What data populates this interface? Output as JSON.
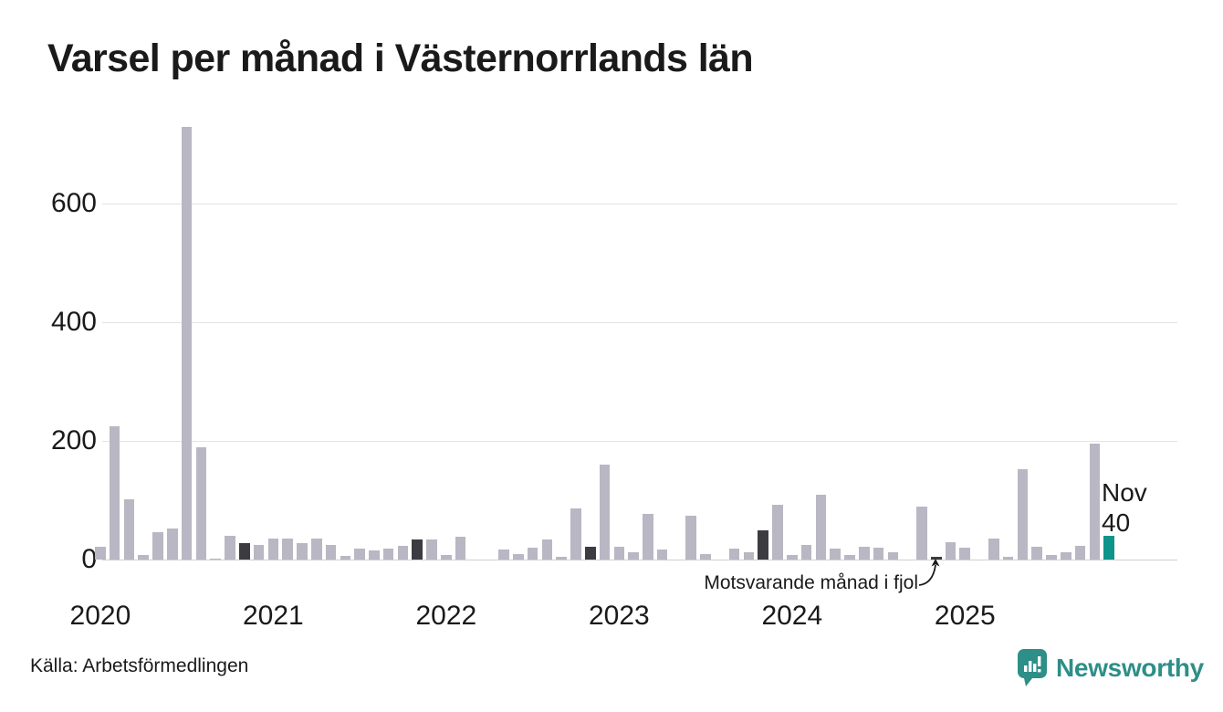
{
  "title": "Varsel per månad i Västernorrlands län",
  "source": "Källa: Arbetsförmedlingen",
  "annotation": {
    "text": "Motsvarande månad i fjol"
  },
  "highlight_label": {
    "month": "Nov",
    "value": "40"
  },
  "brand": {
    "name": "Newsworthy"
  },
  "colors": {
    "bar": "#b9b7c3",
    "prior_year_bar": "#3d3b42",
    "highlight_bar": "#0f948a",
    "brand": "#2e8e88",
    "grid": "#e3e2e7",
    "axis_text": "#1a1a1a"
  },
  "chart_data": {
    "type": "bar",
    "title": "Varsel per månad i Västernorrlands län",
    "xlabel": "",
    "ylabel": "",
    "x_tick_years": [
      "2020",
      "2021",
      "2022",
      "2023",
      "2024",
      "2025"
    ],
    "yticks": [
      0,
      200,
      400,
      600
    ],
    "ylim": [
      0,
      745
    ],
    "grid": "horizontal",
    "legend_position": "none",
    "months": [
      "2020-01",
      "2020-02",
      "2020-03",
      "2020-04",
      "2020-05",
      "2020-06",
      "2020-07",
      "2020-08",
      "2020-09",
      "2020-10",
      "2020-11",
      "2020-12",
      "2021-01",
      "2021-02",
      "2021-03",
      "2021-04",
      "2021-05",
      "2021-06",
      "2021-07",
      "2021-08",
      "2021-09",
      "2021-10",
      "2021-11",
      "2021-12",
      "2022-01",
      "2022-02",
      "2022-03",
      "2022-04",
      "2022-05",
      "2022-06",
      "2022-07",
      "2022-08",
      "2022-09",
      "2022-10",
      "2022-11",
      "2022-12",
      "2023-01",
      "2023-02",
      "2023-03",
      "2023-04",
      "2023-05",
      "2023-06",
      "2023-07",
      "2023-08",
      "2023-09",
      "2023-10",
      "2023-11",
      "2023-12",
      "2024-01",
      "2024-02",
      "2024-03",
      "2024-04",
      "2024-05",
      "2024-06",
      "2024-07",
      "2024-08",
      "2024-09",
      "2024-10",
      "2024-11",
      "2024-12",
      "2025-01",
      "2025-02",
      "2025-03",
      "2025-04",
      "2025-05",
      "2025-06",
      "2025-07",
      "2025-08",
      "2025-09",
      "2025-10",
      "2025-11"
    ],
    "values": [
      22,
      225,
      102,
      8,
      46,
      52,
      730,
      190,
      2,
      40,
      28,
      24,
      35,
      35,
      28,
      35,
      24,
      6,
      18,
      15,
      18,
      23,
      34,
      34,
      8,
      38,
      0,
      0,
      17,
      9,
      20,
      34,
      5,
      86,
      21,
      160,
      21,
      12,
      77,
      17,
      0,
      74,
      9,
      0,
      19,
      13,
      50,
      92,
      8,
      24,
      110,
      19,
      7,
      22,
      20,
      13,
      0,
      89,
      4,
      30,
      20,
      0,
      35,
      5,
      152,
      22,
      8,
      13,
      23,
      195,
      40
    ],
    "prior_november_indices": [
      10,
      22,
      34,
      46,
      58
    ],
    "highlight_index": 70,
    "annotation_target_month": "2024-11",
    "annotation_text": "Motsvarande månad i fjol",
    "highlight_point": {
      "month": "Nov",
      "value": 40
    }
  }
}
